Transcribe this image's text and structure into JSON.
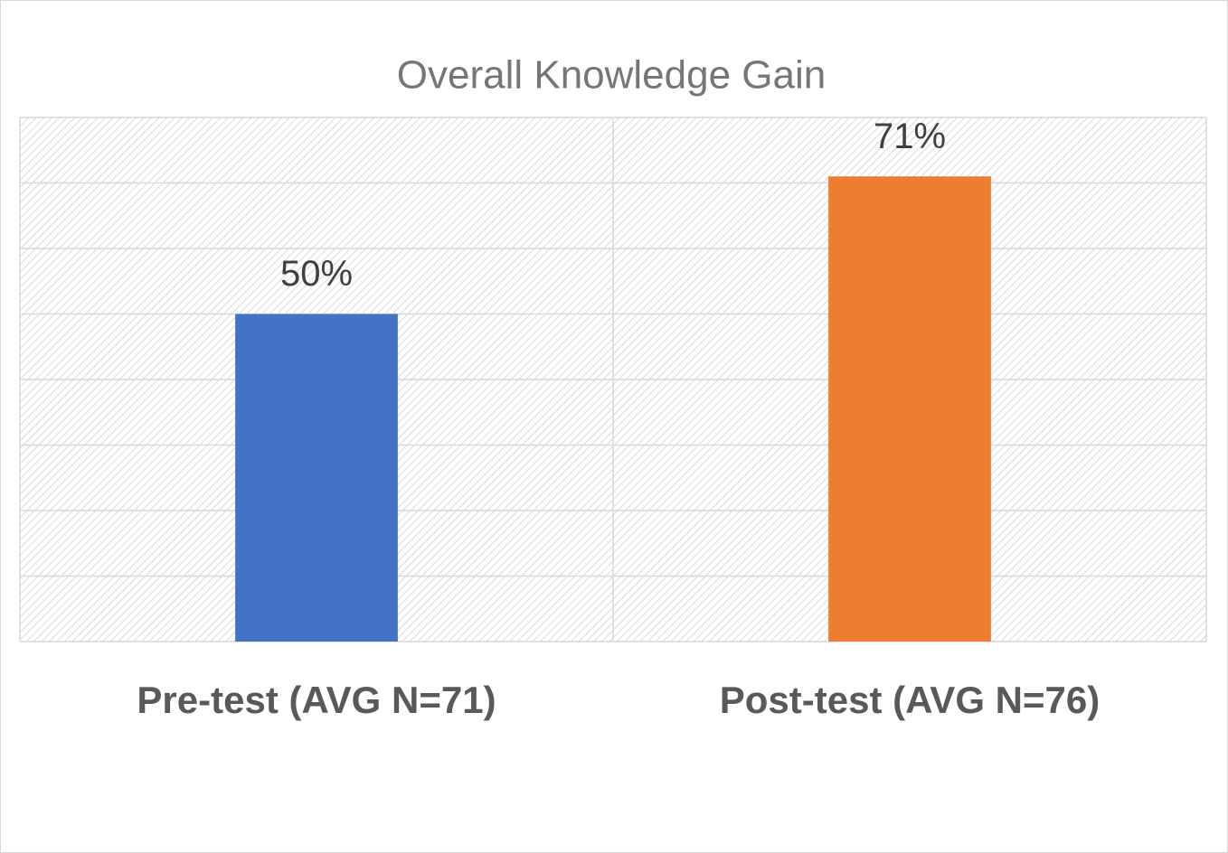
{
  "chart_data": {
    "type": "bar",
    "title": "Overall Knowledge Gain",
    "categories": [
      "Pre-test (AVG N=71)",
      "Post-test (AVG N=76)"
    ],
    "values": [
      50,
      71
    ],
    "value_labels": [
      "50%",
      "71%"
    ],
    "colors": [
      "#4472c4",
      "#ed7d31"
    ],
    "ylim": [
      0,
      80
    ],
    "yticks": [
      0,
      10,
      20,
      30,
      40,
      50,
      60,
      70,
      80
    ],
    "show_ytick_labels": false,
    "grid": true
  }
}
